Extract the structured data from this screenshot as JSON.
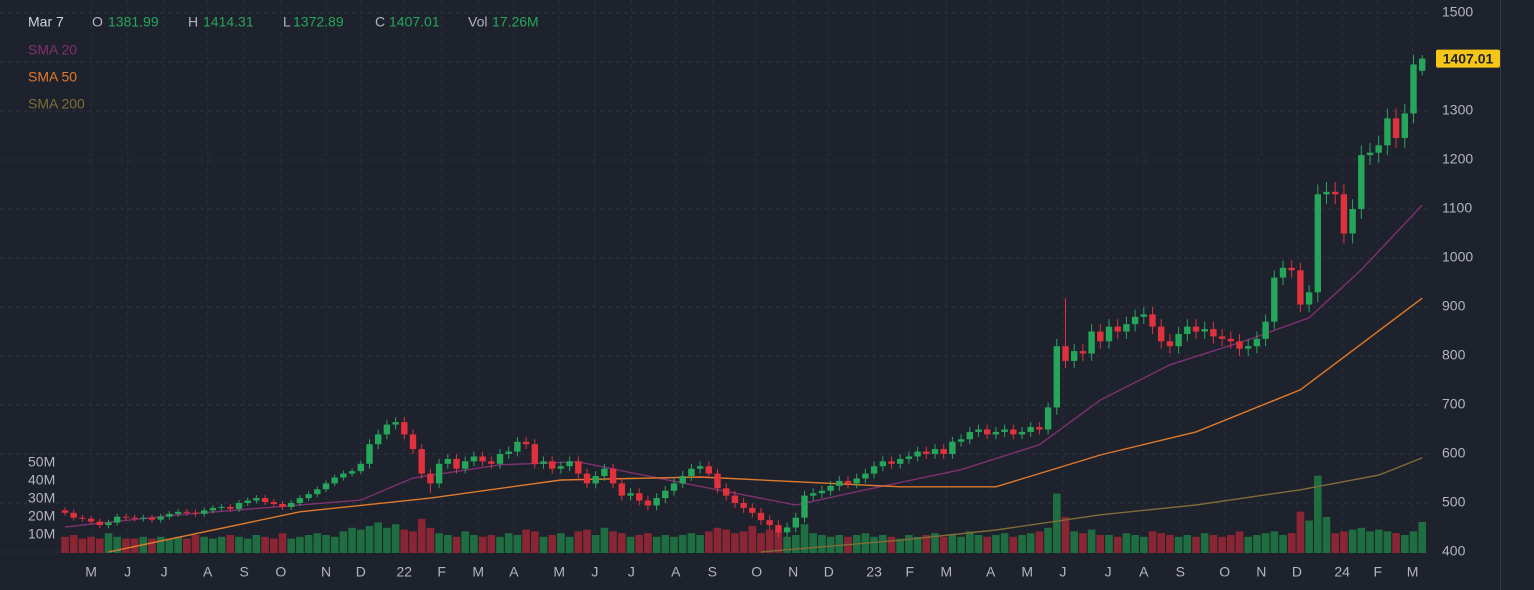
{
  "chart_data": {
    "type": "candlestick",
    "legend_header": {
      "date": "Mar 7",
      "labels": [
        "O",
        "H",
        "L",
        "C",
        "Vol"
      ],
      "volume_label": "17.26M"
    },
    "up_color": "#26a65b",
    "down_color": "#e0313d",
    "volume_up_color": "#1f6e42",
    "volume_down_color": "#8a2634",
    "ylim": [
      400,
      1500
    ],
    "yticks": [
      400,
      500,
      600,
      700,
      800,
      900,
      1000,
      1100,
      1200,
      1300,
      1400,
      1500
    ],
    "volume_lim": [
      0,
      50
    ],
    "volume_ticks": [
      {
        "value": 10,
        "label": "10M"
      },
      {
        "value": 20,
        "label": "20M"
      },
      {
        "value": 30,
        "label": "30M"
      },
      {
        "value": 40,
        "label": "40M"
      },
      {
        "value": 50,
        "label": "50M"
      }
    ],
    "grid": true,
    "xticks": [
      {
        "value": 3,
        "label": "M"
      },
      {
        "value": 7.2,
        "label": "J"
      },
      {
        "value": 11.4,
        "label": "J"
      },
      {
        "value": 16.4,
        "label": "A"
      },
      {
        "value": 20.6,
        "label": "S"
      },
      {
        "value": 24.8,
        "label": "O"
      },
      {
        "value": 30,
        "label": "N"
      },
      {
        "value": 34,
        "label": "D"
      },
      {
        "value": 39,
        "label": "22"
      },
      {
        "value": 43.3,
        "label": "F"
      },
      {
        "value": 47.5,
        "label": "M"
      },
      {
        "value": 51.6,
        "label": "A"
      },
      {
        "value": 56.8,
        "label": "M"
      },
      {
        "value": 60.9,
        "label": "J"
      },
      {
        "value": 65.1,
        "label": "J"
      },
      {
        "value": 70.2,
        "label": "A"
      },
      {
        "value": 74.4,
        "label": "S"
      },
      {
        "value": 79.5,
        "label": "O"
      },
      {
        "value": 83.7,
        "label": "N"
      },
      {
        "value": 87.8,
        "label": "D"
      },
      {
        "value": 93,
        "label": "23"
      },
      {
        "value": 97.1,
        "label": "F"
      },
      {
        "value": 101.3,
        "label": "M"
      },
      {
        "value": 106.4,
        "label": "A"
      },
      {
        "value": 110.6,
        "label": "M"
      },
      {
        "value": 114.7,
        "label": "J"
      },
      {
        "value": 119.9,
        "label": "J"
      },
      {
        "value": 124,
        "label": "A"
      },
      {
        "value": 128.2,
        "label": "S"
      },
      {
        "value": 133.3,
        "label": "O"
      },
      {
        "value": 137.5,
        "label": "N"
      },
      {
        "value": 141.6,
        "label": "D"
      },
      {
        "value": 146.8,
        "label": "24"
      },
      {
        "value": 150.9,
        "label": "F"
      },
      {
        "value": 154.9,
        "label": "M"
      }
    ],
    "open": [
      485,
      480,
      470,
      468,
      462,
      455,
      460,
      472,
      470,
      468,
      470,
      466,
      472,
      478,
      482,
      480,
      478,
      485,
      490,
      492,
      488,
      500,
      505,
      510,
      502,
      498,
      492,
      500,
      510,
      518,
      528,
      540,
      552,
      560,
      565,
      580,
      620,
      640,
      660,
      665,
      640,
      610,
      560,
      540,
      580,
      590,
      570,
      585,
      595,
      585,
      580,
      600,
      605,
      625,
      620,
      580,
      585,
      570,
      575,
      585,
      560,
      540,
      555,
      570,
      540,
      515,
      520,
      505,
      495,
      510,
      525,
      540,
      555,
      570,
      575,
      560,
      530,
      515,
      500,
      490,
      480,
      465,
      455,
      440,
      450,
      470,
      515,
      520,
      525,
      535,
      545,
      540,
      550,
      560,
      575,
      585,
      580,
      590,
      595,
      605,
      600,
      610,
      600,
      625,
      630,
      645,
      650,
      640,
      645,
      650,
      640,
      645,
      655,
      650,
      695,
      820,
      790,
      810,
      805,
      850,
      830,
      860,
      850,
      865,
      880,
      885,
      860,
      830,
      820,
      845,
      860,
      850,
      855,
      840,
      835,
      830,
      815,
      820,
      835,
      870,
      960,
      980,
      975,
      905,
      930,
      1130,
      1135,
      1130,
      1050,
      1100,
      1210,
      1215,
      1230,
      1285,
      1245,
      1295,
      1381.99
    ],
    "high": [
      491,
      486,
      476,
      474,
      468,
      466,
      478,
      478,
      476,
      476,
      476,
      478,
      484,
      488,
      488,
      486,
      491,
      496,
      498,
      498,
      506,
      511,
      516,
      516,
      508,
      504,
      506,
      516,
      524,
      534,
      546,
      558,
      566,
      571,
      586,
      630,
      650,
      670,
      675,
      675,
      650,
      620,
      570,
      590,
      600,
      600,
      595,
      605,
      605,
      595,
      610,
      615,
      635,
      635,
      630,
      595,
      595,
      585,
      595,
      595,
      570,
      565,
      580,
      580,
      550,
      530,
      530,
      515,
      520,
      535,
      550,
      565,
      580,
      585,
      585,
      570,
      540,
      525,
      510,
      500,
      490,
      475,
      465,
      460,
      480,
      525,
      530,
      535,
      545,
      555,
      555,
      560,
      570,
      585,
      595,
      595,
      600,
      605,
      615,
      615,
      620,
      620,
      635,
      640,
      655,
      660,
      660,
      655,
      660,
      660,
      655,
      665,
      665,
      705,
      835,
      918,
      825,
      825,
      865,
      865,
      875,
      875,
      880,
      895,
      900,
      900,
      875,
      845,
      860,
      875,
      875,
      870,
      870,
      855,
      850,
      845,
      835,
      850,
      885,
      975,
      995,
      995,
      990,
      945,
      1150,
      1155,
      1155,
      1150,
      1120,
      1230,
      1235,
      1250,
      1305,
      1305,
      1315,
      1415,
      1414.31
    ],
    "low": [
      474,
      464,
      462,
      456,
      449,
      449,
      454,
      464,
      462,
      462,
      460,
      460,
      466,
      472,
      474,
      472,
      472,
      479,
      484,
      482,
      482,
      494,
      499,
      496,
      492,
      486,
      486,
      494,
      504,
      512,
      522,
      534,
      546,
      554,
      559,
      570,
      610,
      630,
      650,
      630,
      600,
      550,
      520,
      530,
      570,
      560,
      560,
      575,
      575,
      570,
      570,
      590,
      595,
      610,
      570,
      570,
      560,
      560,
      565,
      550,
      530,
      530,
      545,
      530,
      505,
      505,
      495,
      485,
      485,
      500,
      515,
      530,
      545,
      560,
      550,
      520,
      505,
      490,
      480,
      470,
      455,
      445,
      430,
      430,
      440,
      460,
      505,
      510,
      515,
      525,
      530,
      530,
      540,
      550,
      565,
      570,
      570,
      580,
      585,
      590,
      590,
      590,
      590,
      615,
      620,
      635,
      630,
      630,
      635,
      630,
      630,
      635,
      640,
      640,
      680,
      775,
      775,
      790,
      790,
      815,
      815,
      835,
      835,
      850,
      865,
      845,
      815,
      805,
      805,
      830,
      835,
      835,
      825,
      820,
      815,
      800,
      800,
      805,
      820,
      855,
      945,
      960,
      890,
      890,
      910,
      1110,
      1110,
      1030,
      1030,
      1080,
      1190,
      1195,
      1210,
      1225,
      1225,
      1275,
      1372.89
    ],
    "close": [
      480,
      470,
      468,
      462,
      455,
      460,
      472,
      470,
      468,
      470,
      466,
      472,
      478,
      482,
      480,
      478,
      485,
      490,
      492,
      488,
      500,
      505,
      510,
      502,
      498,
      492,
      500,
      510,
      518,
      528,
      540,
      552,
      560,
      565,
      580,
      620,
      640,
      660,
      665,
      640,
      610,
      560,
      540,
      580,
      590,
      570,
      585,
      595,
      585,
      580,
      600,
      605,
      625,
      620,
      580,
      585,
      570,
      575,
      585,
      560,
      540,
      555,
      570,
      540,
      515,
      520,
      505,
      495,
      510,
      525,
      540,
      555,
      570,
      575,
      560,
      530,
      515,
      500,
      490,
      480,
      465,
      455,
      440,
      450,
      470,
      515,
      520,
      525,
      535,
      545,
      540,
      550,
      560,
      575,
      585,
      580,
      590,
      595,
      605,
      600,
      610,
      600,
      625,
      630,
      645,
      650,
      640,
      645,
      650,
      640,
      645,
      655,
      650,
      695,
      820,
      790,
      810,
      805,
      850,
      830,
      860,
      850,
      865,
      880,
      885,
      860,
      830,
      820,
      845,
      860,
      850,
      855,
      840,
      835,
      830,
      815,
      820,
      835,
      870,
      960,
      980,
      975,
      905,
      930,
      1130,
      1135,
      1130,
      1050,
      1100,
      1210,
      1215,
      1230,
      1285,
      1245,
      1295,
      1395,
      1407.01
    ],
    "volume": [
      9,
      10,
      8,
      9,
      8,
      11,
      9,
      8,
      8,
      9,
      8,
      9,
      8,
      9,
      8,
      10,
      9,
      8,
      9,
      10,
      9,
      8,
      10,
      9,
      8,
      11,
      8,
      9,
      10,
      11,
      10,
      9,
      12,
      14,
      13,
      15,
      17,
      14,
      16,
      13,
      12,
      19,
      14,
      11,
      10,
      9,
      12,
      10,
      9,
      10,
      9,
      11,
      10,
      13,
      12,
      9,
      10,
      11,
      9,
      12,
      13,
      10,
      14,
      12,
      11,
      9,
      10,
      11,
      9,
      10,
      9,
      10,
      11,
      10,
      12,
      14,
      13,
      11,
      12,
      15,
      11,
      13,
      12,
      9,
      10,
      16,
      11,
      10,
      9,
      10,
      9,
      10,
      11,
      9,
      10,
      9,
      8,
      10,
      9,
      10,
      11,
      9,
      10,
      9,
      12,
      10,
      9,
      10,
      11,
      9,
      10,
      11,
      12,
      14,
      33,
      20,
      12,
      11,
      13,
      10,
      10,
      9,
      11,
      10,
      9,
      12,
      11,
      10,
      9,
      10,
      9,
      11,
      10,
      9,
      10,
      12,
      9,
      10,
      11,
      12,
      10,
      11,
      23,
      18,
      43,
      20,
      11,
      12,
      13,
      14,
      12,
      13,
      12,
      11,
      10,
      12,
      17.26
    ],
    "sma": [
      {
        "name": "SMA 20",
        "color": "#7e3170",
        "x": [
          0,
          13,
          34,
          40,
          50,
          59,
          67,
          75,
          84,
          92,
          103,
          112,
          119,
          127,
          136,
          143,
          149,
          156
        ],
        "values": [
          451,
          476,
          506,
          551,
          578,
          584,
          555,
          527,
          496,
          527,
          568,
          619,
          710,
          782,
          833,
          878,
          976,
          1108
        ]
      },
      {
        "name": "SMA 50",
        "color": "#e07a2c",
        "x": [
          5,
          27,
          42,
          57,
          73,
          96,
          107,
          119,
          130,
          142,
          156
        ],
        "values": [
          400,
          482,
          510,
          547,
          553,
          533,
          533,
          598,
          645,
          731,
          918
        ]
      },
      {
        "name": "SMA 200",
        "color": "#7f6c36",
        "x": [
          80,
          96,
          107,
          119,
          130,
          142,
          151,
          156
        ],
        "values": [
          400,
          424,
          445,
          476,
          496,
          527,
          557,
          592
        ]
      }
    ]
  }
}
